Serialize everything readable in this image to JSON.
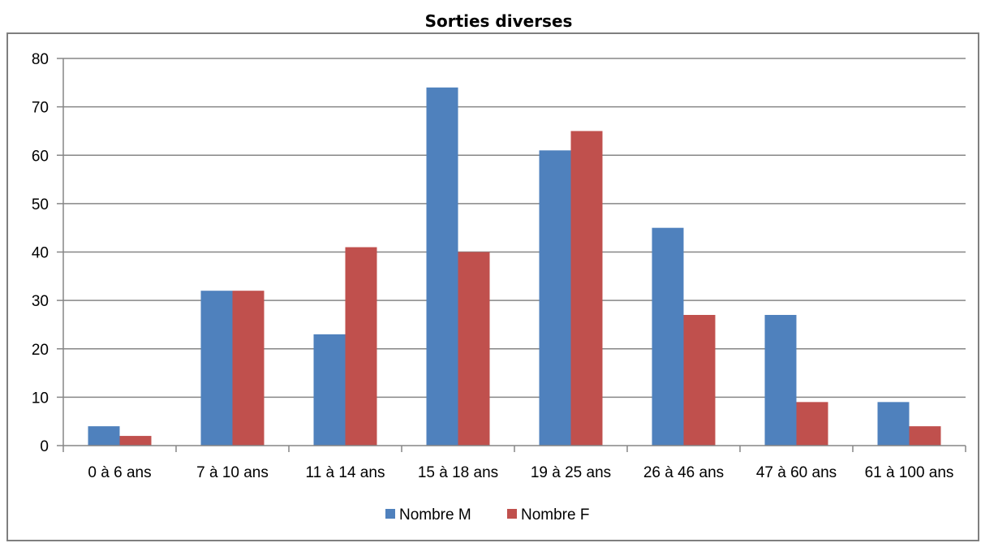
{
  "chart_data": {
    "type": "bar",
    "title": "Sorties diverses",
    "xlabel": "",
    "ylabel": "",
    "ylim": [
      0,
      80
    ],
    "yticks": [
      0,
      10,
      20,
      30,
      40,
      50,
      60,
      70,
      80
    ],
    "grid": true,
    "legend_position": "bottom",
    "categories": [
      "0 à 6 ans",
      "7 à 10 ans",
      "11 à 14 ans",
      "15 à 18 ans",
      "19 à 25 ans",
      "26 à 46 ans",
      "47 à 60 ans",
      "61 à 100 ans"
    ],
    "series": [
      {
        "name": "Nombre M",
        "color": "#4f81bd",
        "values": [
          4,
          32,
          23,
          74,
          61,
          45,
          27,
          9
        ]
      },
      {
        "name": "Nombre F",
        "color": "#c0504d",
        "values": [
          2,
          32,
          41,
          40,
          65,
          27,
          9,
          4
        ]
      }
    ]
  }
}
